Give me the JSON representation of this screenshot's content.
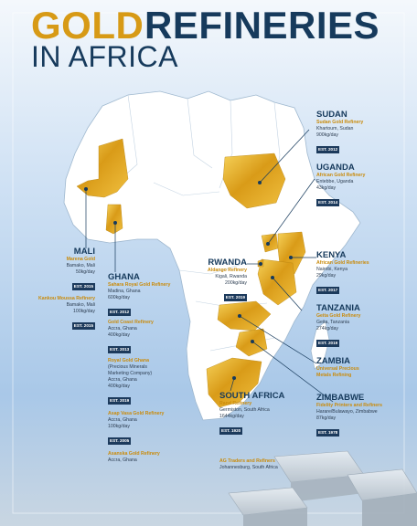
{
  "title": {
    "gold_word": "GOLD",
    "rest": "REFINERIES",
    "line2": "IN AFRICA"
  },
  "colors": {
    "gold": "#d79a16",
    "navy": "#163a5c",
    "sky": "#cfe3f6",
    "land": "#ffffff"
  },
  "countries": {
    "sudan": {
      "name": "SUDAN",
      "refinery": "Sudan Gold Refinery",
      "city": "Khartoum, Sudan",
      "capacity": "900kg/day",
      "est": "EST. 2012"
    },
    "uganda": {
      "name": "UGANDA",
      "refinery": "African Gold Refinery",
      "city": "Entebbe, Uganda",
      "capacity": "43kg/day",
      "est": "EST. 2014"
    },
    "kenya": {
      "name": "KENYA",
      "refinery": "African Gold Refineries",
      "city": "Nairobi, Kenya",
      "capacity": "29kg/day",
      "est": "EST. 2017"
    },
    "tanzania": {
      "name": "TANZANIA",
      "refinery": "Geita Gold Refinery",
      "city": "Geita, Tanzania",
      "capacity": "274kg/day",
      "est": "EST. 2019"
    },
    "zambia": {
      "name": "ZAMBIA",
      "refinery_l1": "Universal Precious",
      "refinery_l2": "Metals Refining"
    },
    "zimbabwe": {
      "name": "ZIMBABWE",
      "refinery": "Fidelity Printers and Refiners",
      "city": "Harare/Bulawayo, Zimbabwe",
      "capacity": "87kg/day",
      "est": "EST. 1978"
    },
    "rwanda": {
      "name": "RWANDA",
      "refinery": "Aldango Refinery",
      "city": "Kigali, Rwanda",
      "capacity": "200kg/day",
      "est": "EST. 2019"
    },
    "south_africa": {
      "name": "SOUTH AFRICA",
      "refinery1": "Rand Refinery",
      "city1": "Germiston, South Africa",
      "capacity1": "1644kg/day",
      "est1": "EST. 1920",
      "refinery2": "AG Traders and Refiners",
      "city2": "Johannesburg, South Africa"
    },
    "mali": {
      "name": "MALI",
      "refinery1": "Marena Gold",
      "city1": "Bamako, Mali",
      "capacity1": "50kg/day",
      "est1": "EST. 2015",
      "refinery2": "Kankou Moussa Refinery",
      "city2": "Bamako, Mali",
      "capacity2": "100kg/day",
      "est2": "EST. 2015"
    },
    "ghana": {
      "name": "GHANA",
      "refinery1": "Sahara Royal Gold Refinery",
      "city1": "Madina, Ghana",
      "capacity1": "600kg/day",
      "est1": "EST. 2012",
      "refinery2": "Gold Coast Refinery",
      "city2": "Accra, Ghana",
      "capacity2": "400kg/day",
      "est2": "EST. 2013",
      "refinery3": "Royal Gold Ghana",
      "refinery3_l2": "(Precious Minerals",
      "refinery3_l3": "Marketing Company)",
      "city3": "Accra, Ghana",
      "capacity3": "400kg/day",
      "est3": "EST. 2019",
      "refinery4": "Asap Vasa Gold Refinery",
      "city4": "Accra, Ghana",
      "capacity4": "100kg/day",
      "est4": "EST. 2005",
      "refinery5": "Asanska Gold Refinery",
      "city5": "Accra, Ghana"
    }
  }
}
